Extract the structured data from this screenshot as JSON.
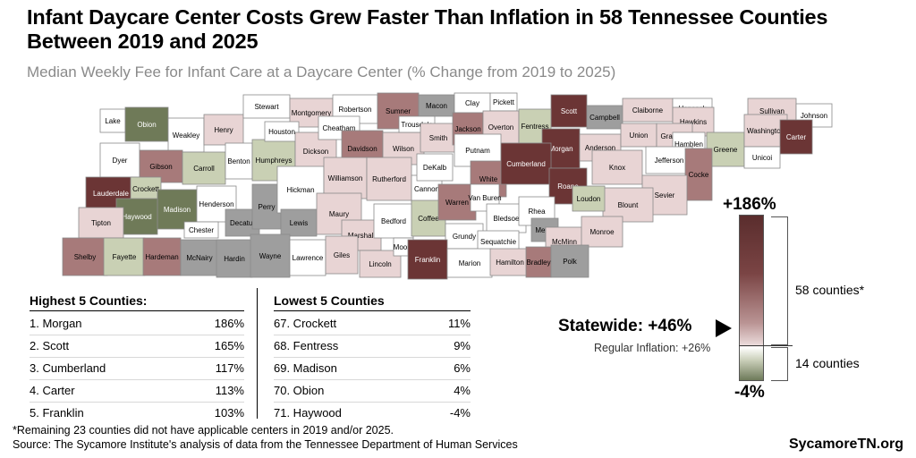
{
  "title": "Infant Daycare Center Costs Grew Faster Than Inflation in 58 Tennessee Counties Between 2019 and 2025",
  "subtitle": "Median Weekly Fee for Infant Care at a Daycare Center (% Change from 2019 to 2025)",
  "colors": {
    "dark": "#6b3535",
    "mid": "#a77a7a",
    "light": "#e8d4d4",
    "green": "#c9d0b4",
    "greenDark": "#6f7a58",
    "gray": "#9e9e9e",
    "white": "#ffffff"
  },
  "counties": [
    {
      "name": "Lake",
      "fill": "white"
    },
    {
      "name": "Obion",
      "fill": "greenDark"
    },
    {
      "name": "Weakley",
      "fill": "white"
    },
    {
      "name": "Henry",
      "fill": "light"
    },
    {
      "name": "Stewart",
      "fill": "white"
    },
    {
      "name": "Montgomery",
      "fill": "light"
    },
    {
      "name": "Robertson",
      "fill": "white"
    },
    {
      "name": "Sumner",
      "fill": "mid"
    },
    {
      "name": "Macon",
      "fill": "gray"
    },
    {
      "name": "Clay",
      "fill": "white"
    },
    {
      "name": "Pickett",
      "fill": "white"
    },
    {
      "name": "Scott",
      "fill": "dark"
    },
    {
      "name": "Campbell",
      "fill": "gray"
    },
    {
      "name": "Claiborne",
      "fill": "light"
    },
    {
      "name": "Hancock",
      "fill": "white"
    },
    {
      "name": "Hawkins",
      "fill": "light"
    },
    {
      "name": "Sullivan",
      "fill": "light"
    },
    {
      "name": "Johnson",
      "fill": "white"
    },
    {
      "name": "Dyer",
      "fill": "white"
    },
    {
      "name": "Gibson",
      "fill": "mid"
    },
    {
      "name": "Carroll",
      "fill": "green"
    },
    {
      "name": "Benton",
      "fill": "white"
    },
    {
      "name": "Humphreys",
      "fill": "green"
    },
    {
      "name": "Houston",
      "fill": "white"
    },
    {
      "name": "Dickson",
      "fill": "light"
    },
    {
      "name": "Cheatham",
      "fill": "white"
    },
    {
      "name": "Davidson",
      "fill": "mid"
    },
    {
      "name": "Wilson",
      "fill": "light"
    },
    {
      "name": "Trousdale",
      "fill": "white"
    },
    {
      "name": "Smith",
      "fill": "light"
    },
    {
      "name": "Jackson",
      "fill": "mid"
    },
    {
      "name": "Overton",
      "fill": "light"
    },
    {
      "name": "Fentress",
      "fill": "green"
    },
    {
      "name": "Morgan",
      "fill": "dark"
    },
    {
      "name": "Anderson",
      "fill": "light"
    },
    {
      "name": "Union",
      "fill": "light"
    },
    {
      "name": "Grainger",
      "fill": "light"
    },
    {
      "name": "Hamblen",
      "fill": "white"
    },
    {
      "name": "Greene",
      "fill": "green"
    },
    {
      "name": "Washington",
      "fill": "light"
    },
    {
      "name": "Carter",
      "fill": "dark"
    },
    {
      "name": "Unicoi",
      "fill": "white"
    },
    {
      "name": "Lauderdale",
      "fill": "dark"
    },
    {
      "name": "Crockett",
      "fill": "green"
    },
    {
      "name": "Madison",
      "fill": "greenDark"
    },
    {
      "name": "Haywood",
      "fill": "greenDark"
    },
    {
      "name": "Henderson",
      "fill": "white"
    },
    {
      "name": "Decatur",
      "fill": "gray"
    },
    {
      "name": "Perry",
      "fill": "gray"
    },
    {
      "name": "Hickman",
      "fill": "white"
    },
    {
      "name": "Williamson",
      "fill": "light"
    },
    {
      "name": "Rutherford",
      "fill": "light"
    },
    {
      "name": "Cannon",
      "fill": "white"
    },
    {
      "name": "DeKalb",
      "fill": "white"
    },
    {
      "name": "Putnam",
      "fill": "white"
    },
    {
      "name": "White",
      "fill": "mid"
    },
    {
      "name": "Cumberland",
      "fill": "dark"
    },
    {
      "name": "Roane",
      "fill": "dark"
    },
    {
      "name": "Knox",
      "fill": "light"
    },
    {
      "name": "Jefferson",
      "fill": "white"
    },
    {
      "name": "Cocke",
      "fill": "mid"
    },
    {
      "name": "Sevier",
      "fill": "light"
    },
    {
      "name": "Blount",
      "fill": "light"
    },
    {
      "name": "Loudon",
      "fill": "green"
    },
    {
      "name": "Tipton",
      "fill": "light"
    },
    {
      "name": "Chester",
      "fill": "white"
    },
    {
      "name": "Lewis",
      "fill": "gray"
    },
    {
      "name": "Maury",
      "fill": "light"
    },
    {
      "name": "Marshall",
      "fill": "light"
    },
    {
      "name": "Bedford",
      "fill": "white"
    },
    {
      "name": "Coffee",
      "fill": "green"
    },
    {
      "name": "Warren",
      "fill": "mid"
    },
    {
      "name": "Van Buren",
      "fill": "white"
    },
    {
      "name": "Bledsoe",
      "fill": "white"
    },
    {
      "name": "Rhea",
      "fill": "white"
    },
    {
      "name": "Meigs",
      "fill": "gray"
    },
    {
      "name": "McMinn",
      "fill": "light"
    },
    {
      "name": "Monroe",
      "fill": "light"
    },
    {
      "name": "Grundy",
      "fill": "white"
    },
    {
      "name": "Sequatchie",
      "fill": "white"
    },
    {
      "name": "Shelby",
      "fill": "mid"
    },
    {
      "name": "Fayette",
      "fill": "green"
    },
    {
      "name": "Hardeman",
      "fill": "mid"
    },
    {
      "name": "McNairy",
      "fill": "gray"
    },
    {
      "name": "Hardin",
      "fill": "gray"
    },
    {
      "name": "Wayne",
      "fill": "gray"
    },
    {
      "name": "Lawrence",
      "fill": "white"
    },
    {
      "name": "Giles",
      "fill": "light"
    },
    {
      "name": "Lincoln",
      "fill": "light"
    },
    {
      "name": "Moore",
      "fill": "white"
    },
    {
      "name": "Franklin",
      "fill": "dark"
    },
    {
      "name": "Marion",
      "fill": "white"
    },
    {
      "name": "Hamilton",
      "fill": "light"
    },
    {
      "name": "Bradley",
      "fill": "mid"
    },
    {
      "name": "Polk",
      "fill": "gray"
    }
  ],
  "highest": {
    "heading": "Highest 5 Counties:",
    "rows": [
      {
        "label": "1. Morgan",
        "value": "186%"
      },
      {
        "label": "2. Scott",
        "value": "165%"
      },
      {
        "label": "3. Cumberland",
        "value": "117%"
      },
      {
        "label": "4. Carter",
        "value": "113%"
      },
      {
        "label": "5. Franklin",
        "value": "103%"
      }
    ]
  },
  "lowest": {
    "heading": "Lowest 5 Counties",
    "rows": [
      {
        "label": "67. Crockett",
        "value": "11%"
      },
      {
        "label": "68. Fentress",
        "value": "9%"
      },
      {
        "label": "69. Madison",
        "value": "6%"
      },
      {
        "label": "70. Obion",
        "value": "4%"
      },
      {
        "label": "71. Haywood",
        "value": "-4%"
      }
    ]
  },
  "legend": {
    "max": "+186%",
    "min": "-4%",
    "statewide": "Statewide: +46%",
    "regular_inflation": "Regular Inflation: +26%",
    "above_count": "58 counties*",
    "below_count": "14 counties"
  },
  "footnote": "*Remaining 23 counties did not have applicable centers in 2019 and/or 2025.",
  "source": "Source: The Sycamore Institute's analysis of data from the Tennessee Department of Human Services",
  "brand": "SycamoreTN.org"
}
